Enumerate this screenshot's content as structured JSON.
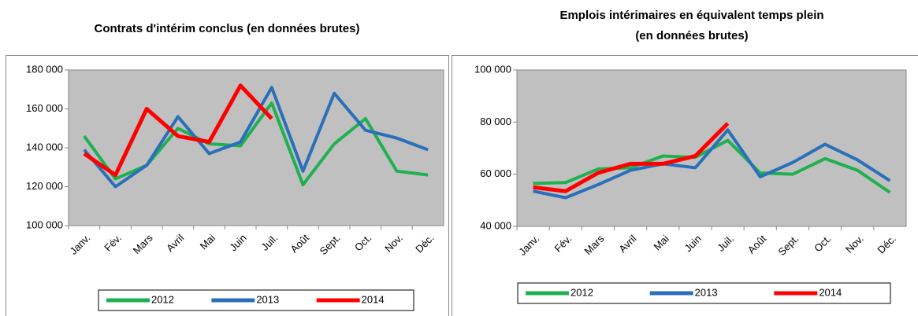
{
  "chart_data": [
    {
      "type": "line",
      "title": [
        "Contrats d'intérim conclus (en données brutes)"
      ],
      "categories": [
        "Janv.",
        "Fév.",
        "Mars",
        "Avril",
        "Mai",
        "Juin",
        "Juil.",
        "Août",
        "Sept.",
        "Oct.",
        "Nov.",
        "Déc."
      ],
      "series": [
        {
          "name": "2012",
          "color": "#1fb04f",
          "values": [
            146000,
            124000,
            131000,
            150000,
            142000,
            141000,
            163000,
            121000,
            142000,
            155000,
            128000,
            126000
          ]
        },
        {
          "name": "2013",
          "color": "#2a6fba",
          "values": [
            139000,
            120000,
            131000,
            156000,
            137000,
            143000,
            171000,
            128000,
            168000,
            149000,
            145000,
            139000
          ]
        },
        {
          "name": "2014",
          "color": "#ff0000",
          "values": [
            137000,
            126000,
            160000,
            146000,
            143000,
            172000,
            155000,
            null,
            null,
            null,
            null,
            null
          ]
        }
      ],
      "ylim": [
        100000,
        180000
      ],
      "yticks": [
        {
          "value": 100000,
          "label": "100 000"
        },
        {
          "value": 120000,
          "label": "120 000"
        },
        {
          "value": 140000,
          "label": "140 000"
        },
        {
          "value": 160000,
          "label": "160 000"
        },
        {
          "value": 180000,
          "label": "180 000"
        }
      ],
      "grid": false,
      "legend": "bottom"
    },
    {
      "type": "line",
      "title": [
        "Emplois intérimaires en équivalent temps plein",
        "(en données brutes)"
      ],
      "categories": [
        "Janv.",
        "Fév.",
        "Mars",
        "Avril",
        "Mai",
        "Juin",
        "Juil.",
        "Août",
        "Sept.",
        "Oct.",
        "Nov.",
        "Déc."
      ],
      "series": [
        {
          "name": "2012",
          "color": "#1fb04f",
          "values": [
            56500,
            56800,
            62000,
            62500,
            67000,
            66500,
            73000,
            60500,
            60000,
            66000,
            61500,
            53000
          ]
        },
        {
          "name": "2013",
          "color": "#2a6fba",
          "values": [
            53500,
            51000,
            56000,
            61500,
            64000,
            62500,
            77000,
            59000,
            64500,
            71500,
            65500,
            57500
          ]
        },
        {
          "name": "2014",
          "color": "#ff0000",
          "values": [
            55000,
            53500,
            60500,
            64000,
            64000,
            67000,
            79500,
            null,
            null,
            null,
            null,
            null
          ]
        }
      ],
      "ylim": [
        40000,
        100000
      ],
      "yticks": [
        {
          "value": 40000,
          "label": "40 000"
        },
        {
          "value": 60000,
          "label": "60 000"
        },
        {
          "value": 80000,
          "label": "80 000"
        },
        {
          "value": 100000,
          "label": "100 000"
        }
      ],
      "grid": false,
      "legend": "bottom"
    }
  ]
}
